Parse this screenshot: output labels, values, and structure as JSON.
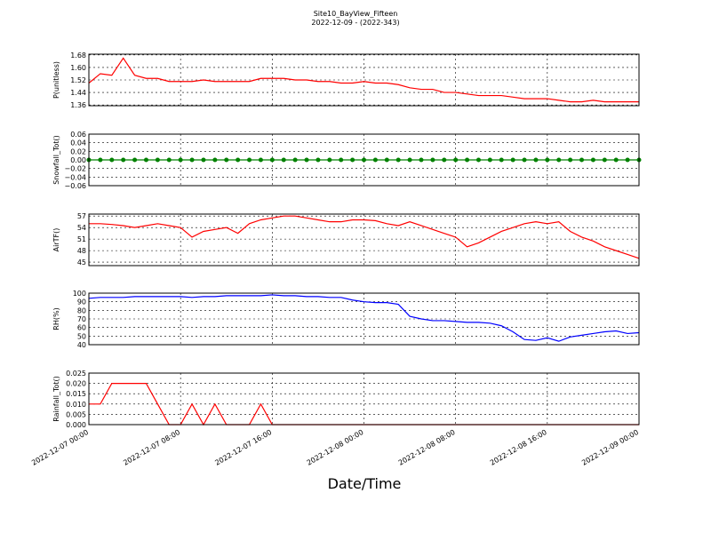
{
  "title": "Site10_BayView_Fifteen",
  "subtitle": "2022-12-09 - (2022-343)",
  "xlabel": "Date/Time",
  "xlim": [
    "2022-12-07 00:00",
    "2022-12-09 00:00"
  ],
  "xticks": [
    "2022-12-07 00:00",
    "2022-12-07 08:00",
    "2022-12-07 16:00",
    "2022-12-08 00:00",
    "2022-12-08 08:00",
    "2022-12-08 16:00",
    "2022-12-09 00:00"
  ],
  "x": [
    "2022-12-07 00:00",
    "2022-12-07 01:00",
    "2022-12-07 02:00",
    "2022-12-07 03:00",
    "2022-12-07 04:00",
    "2022-12-07 05:00",
    "2022-12-07 06:00",
    "2022-12-07 07:00",
    "2022-12-07 08:00",
    "2022-12-07 09:00",
    "2022-12-07 10:00",
    "2022-12-07 11:00",
    "2022-12-07 12:00",
    "2022-12-07 13:00",
    "2022-12-07 14:00",
    "2022-12-07 15:00",
    "2022-12-07 16:00",
    "2022-12-07 17:00",
    "2022-12-07 18:00",
    "2022-12-07 19:00",
    "2022-12-07 20:00",
    "2022-12-07 21:00",
    "2022-12-07 22:00",
    "2022-12-07 23:00",
    "2022-12-08 00:00",
    "2022-12-08 01:00",
    "2022-12-08 02:00",
    "2022-12-08 03:00",
    "2022-12-08 04:00",
    "2022-12-08 05:00",
    "2022-12-08 06:00",
    "2022-12-08 07:00",
    "2022-12-08 08:00",
    "2022-12-08 09:00",
    "2022-12-08 10:00",
    "2022-12-08 11:00",
    "2022-12-08 12:00",
    "2022-12-08 13:00",
    "2022-12-08 14:00",
    "2022-12-08 15:00",
    "2022-12-08 16:00",
    "2022-12-08 17:00",
    "2022-12-08 18:00",
    "2022-12-08 19:00",
    "2022-12-08 20:00",
    "2022-12-08 21:00",
    "2022-12-08 22:00",
    "2022-12-08 23:00",
    "2022-12-09 00:00"
  ],
  "chart_data": [
    {
      "type": "line",
      "ylabel": "P(unitless)",
      "ylim": [
        1.355,
        1.685
      ],
      "yticks": [
        {
          "value": 1.36,
          "label": "1.36"
        },
        {
          "value": 1.44,
          "label": "1.44"
        },
        {
          "value": 1.52,
          "label": "1.52"
        },
        {
          "value": 1.6,
          "label": "1.60"
        },
        {
          "value": 1.68,
          "label": "1.68"
        }
      ],
      "series": [
        {
          "color": "#ff0000",
          "values": [
            1.5,
            1.56,
            1.55,
            1.66,
            1.55,
            1.53,
            1.53,
            1.51,
            1.51,
            1.51,
            1.52,
            1.51,
            1.51,
            1.51,
            1.51,
            1.53,
            1.53,
            1.53,
            1.52,
            1.52,
            1.51,
            1.51,
            1.5,
            1.5,
            1.51,
            1.5,
            1.5,
            1.49,
            1.47,
            1.46,
            1.46,
            1.44,
            1.44,
            1.43,
            1.42,
            1.42,
            1.42,
            1.41,
            1.4,
            1.4,
            1.4,
            1.39,
            1.38,
            1.38,
            1.39,
            1.38,
            1.38,
            1.38,
            1.38
          ]
        }
      ]
    },
    {
      "type": "line",
      "ylabel": "Snowfall_Tot()",
      "ylim": [
        -0.06,
        0.06
      ],
      "marker": true,
      "yticks": [
        {
          "value": -0.06,
          "label": "−0.06"
        },
        {
          "value": -0.04,
          "label": "−0.04"
        },
        {
          "value": -0.02,
          "label": "−0.02"
        },
        {
          "value": 0,
          "label": "0.00"
        },
        {
          "value": 0.02,
          "label": "0.02"
        },
        {
          "value": 0.04,
          "label": "0.04"
        },
        {
          "value": 0.06,
          "label": "0.06"
        }
      ],
      "series": [
        {
          "color": "#008000",
          "values": [
            0,
            0,
            0,
            0,
            0,
            0,
            0,
            0,
            0,
            0,
            0,
            0,
            0,
            0,
            0,
            0,
            0,
            0,
            0,
            0,
            0,
            0,
            0,
            0,
            0,
            0,
            0,
            0,
            0,
            0,
            0,
            0,
            0,
            0,
            0,
            0,
            0,
            0,
            0,
            0,
            0,
            0,
            0,
            0,
            0,
            0,
            0,
            0,
            0
          ]
        }
      ]
    },
    {
      "type": "line",
      "ylabel": "AirTF()",
      "ylim": [
        44.1,
        57.5
      ],
      "yticks": [
        45,
        48,
        51,
        54,
        57
      ],
      "series": [
        {
          "color": "#ff0000",
          "values": [
            55,
            55,
            54.8,
            54.5,
            54,
            54.5,
            55,
            54.5,
            54,
            51.5,
            53,
            53.5,
            54,
            52.5,
            55,
            56,
            56.5,
            57,
            57,
            56.5,
            56,
            55.5,
            55.5,
            56,
            56,
            55.8,
            55,
            54.5,
            55.5,
            54.5,
            53.5,
            52.5,
            51.5,
            49,
            50,
            51.5,
            53,
            54,
            55,
            55.5,
            55,
            55.5,
            53,
            51.5,
            50.5,
            49,
            48,
            47,
            46
          ]
        }
      ]
    },
    {
      "type": "line",
      "ylabel": "RH(%)",
      "ylim": [
        40,
        100
      ],
      "yticks": [
        40,
        50,
        60,
        70,
        80,
        90,
        100
      ],
      "series": [
        {
          "color": "#0000ff",
          "values": [
            94,
            95,
            95,
            95,
            96,
            96,
            96,
            96,
            96,
            95,
            96,
            96,
            97,
            97,
            97,
            97,
            98,
            97,
            97,
            96,
            96,
            95,
            95,
            92,
            90,
            89,
            89,
            87,
            73,
            70,
            68,
            68,
            67,
            66,
            66,
            65,
            62,
            55,
            46,
            45,
            48,
            44,
            49,
            51,
            53,
            55,
            56,
            53,
            54
          ]
        }
      ]
    },
    {
      "type": "line",
      "ylabel": "Rainfall_Tot()",
      "ylim": [
        0,
        0.025
      ],
      "yticks": [
        {
          "value": 0,
          "label": "0.000"
        },
        {
          "value": 0.005,
          "label": "0.005"
        },
        {
          "value": 0.01,
          "label": "0.010"
        },
        {
          "value": 0.015,
          "label": "0.015"
        },
        {
          "value": 0.02,
          "label": "0.020"
        },
        {
          "value": 0.025,
          "label": "0.025"
        }
      ],
      "series": [
        {
          "color": "#ff0000",
          "values": [
            0.01,
            0.01,
            0.02,
            0.02,
            0.02,
            0.02,
            0.01,
            0,
            0,
            0.01,
            0,
            0.01,
            0,
            0,
            0,
            0.01,
            0,
            0,
            0,
            0,
            0,
            0,
            0,
            0,
            0,
            0,
            0,
            0,
            0,
            0,
            0,
            0,
            0,
            0,
            0,
            0,
            0,
            0,
            0,
            0,
            0,
            0,
            0,
            0,
            0,
            0,
            0,
            0,
            0
          ]
        }
      ]
    }
  ]
}
